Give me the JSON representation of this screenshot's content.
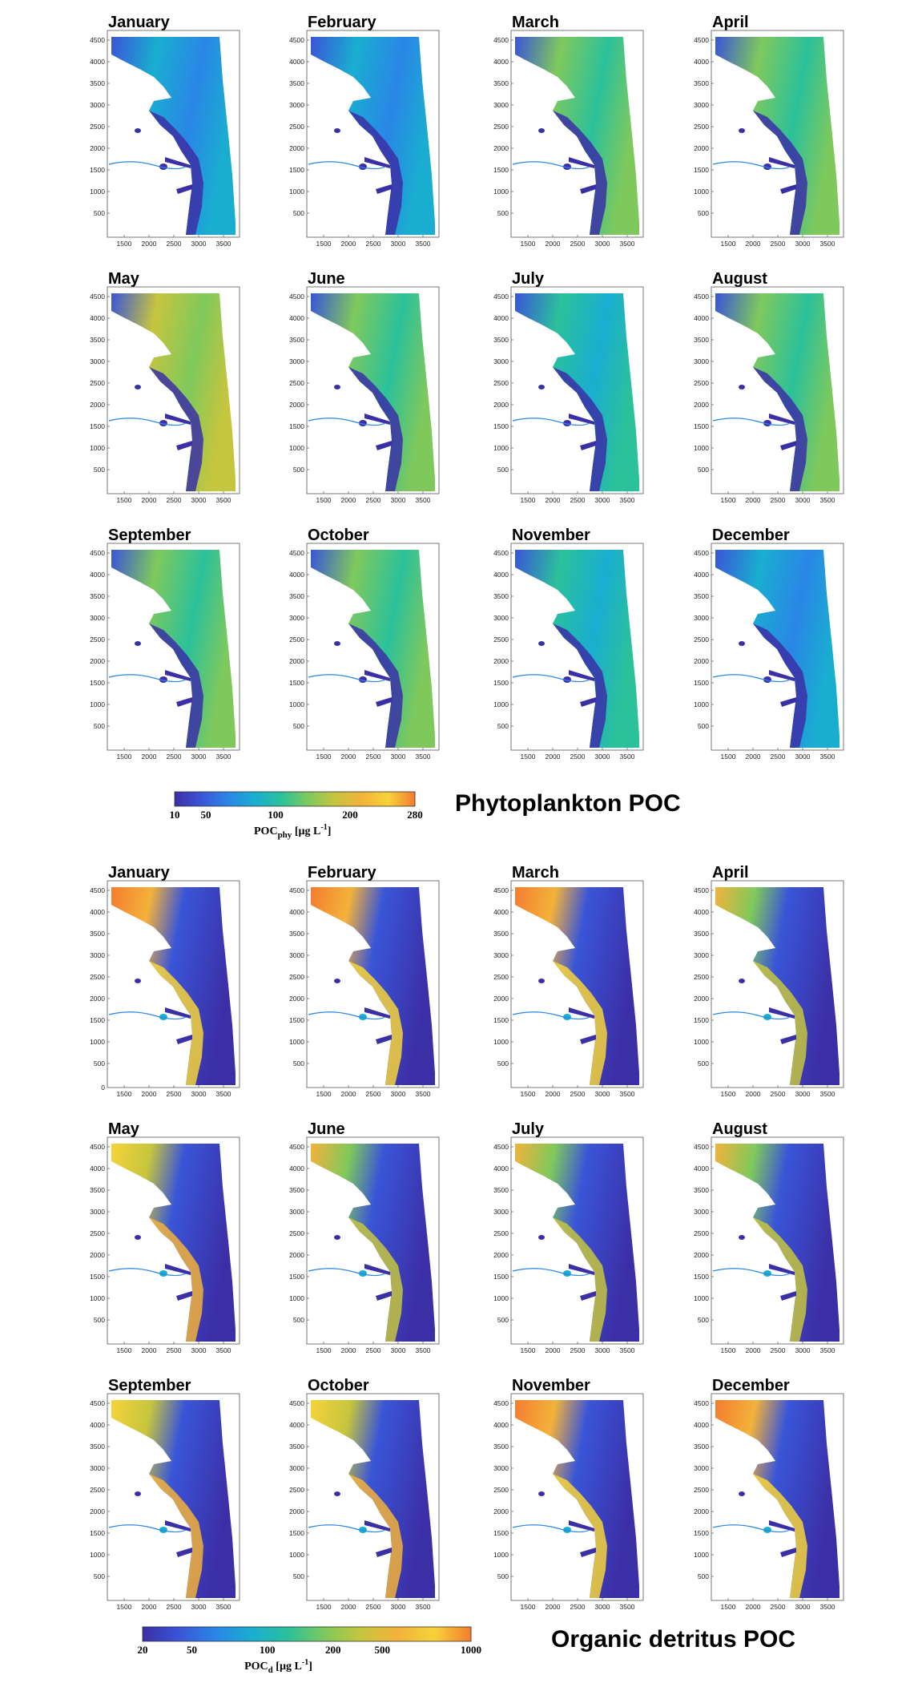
{
  "months": [
    "January",
    "February",
    "March",
    "April",
    "May",
    "June",
    "July",
    "August",
    "September",
    "October",
    "November",
    "December"
  ],
  "x_ticks": [
    "1500",
    "2000",
    "2500",
    "3000",
    "3500"
  ],
  "y_ticks": [
    "500",
    "1000",
    "1500",
    "2000",
    "2500",
    "3000",
    "3500",
    "4000",
    "4500"
  ],
  "y_zero_label": "0",
  "colormap": [
    "#3b2fa6",
    "#3a55d8",
    "#2a86e6",
    "#19aed0",
    "#2bc19a",
    "#7fc95c",
    "#c6c53e",
    "#f3b23a",
    "#f6d33a",
    "#f47c2f"
  ],
  "land_color": "#ffffff",
  "sections": [
    {
      "id": "phytoplankton",
      "title": "Phytoplankton POC",
      "colorbar": {
        "ticks": [
          "10",
          "50",
          "100",
          "200",
          "280"
        ],
        "label_main": "POC",
        "label_sub": "phy",
        "label_unit": " [µg L",
        "label_sup": "-1",
        "label_close": "]"
      },
      "map_intensity_by_month": [
        0.35,
        0.35,
        0.55,
        0.6,
        0.65,
        0.55,
        0.45,
        0.5,
        0.5,
        0.5,
        0.4,
        0.35
      ]
    },
    {
      "id": "detritus",
      "title": "Organic detritus POC",
      "colorbar": {
        "ticks": [
          "20",
          "50",
          "100",
          "200",
          "500",
          "1000"
        ],
        "label_main": "POC",
        "label_sub": "d",
        "label_unit": " [µg L",
        "label_sup": "-1",
        "label_close": "]"
      },
      "map_intensity_by_month": [
        0.75,
        0.8,
        0.8,
        0.6,
        0.65,
        0.55,
        0.5,
        0.5,
        0.7,
        0.7,
        0.8,
        0.8
      ]
    }
  ]
}
